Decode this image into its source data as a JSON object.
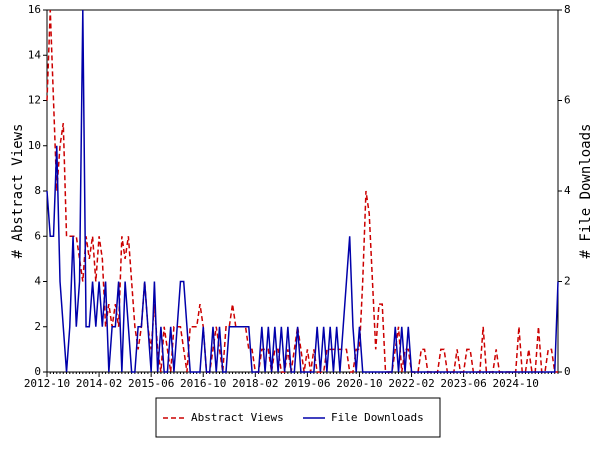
{
  "chart_data": {
    "type": "line",
    "y_label": "# Abstract Views",
    "y2_label": "# File Downloads",
    "categories": [
      "2012-10",
      null,
      null,
      null,
      null,
      null,
      null,
      null,
      null,
      null,
      null,
      null,
      null,
      null,
      null,
      null,
      "2014-02",
      null,
      null,
      null,
      null,
      null,
      null,
      null,
      null,
      null,
      null,
      null,
      null,
      null,
      null,
      null,
      "2015-06",
      null,
      null,
      null,
      null,
      null,
      null,
      null,
      null,
      null,
      null,
      null,
      null,
      null,
      null,
      null,
      "2016-10",
      null,
      null,
      null,
      null,
      null,
      null,
      null,
      null,
      null,
      null,
      null,
      null,
      null,
      null,
      null,
      "2018-02",
      null,
      null,
      null,
      null,
      null,
      null,
      null,
      null,
      null,
      null,
      null,
      null,
      null,
      null,
      null,
      "2019-06",
      null,
      null,
      null,
      null,
      null,
      null,
      null,
      null,
      null,
      null,
      null,
      null,
      null,
      null,
      null,
      "2020-10",
      null,
      null,
      null,
      null,
      null,
      null,
      null,
      null,
      null,
      null,
      null,
      null,
      null,
      null,
      null,
      "2022-02",
      null,
      null,
      null,
      null,
      null,
      null,
      null,
      null,
      null,
      null,
      null,
      null,
      null,
      null,
      null,
      "2023-06",
      null,
      null,
      null,
      null,
      null,
      null,
      null,
      null,
      null,
      null,
      null,
      null,
      null,
      null,
      null,
      "2024-10",
      null,
      null,
      null,
      null,
      null,
      null,
      null,
      null,
      null,
      null,
      null,
      null,
      null
    ],
    "series": [
      {
        "name": "Abstract Views",
        "color": "#cc0000",
        "dash": true,
        "values": [
          12,
          16,
          12,
          8,
          10,
          11,
          6,
          6,
          6,
          6,
          5,
          4,
          6,
          5,
          6,
          4,
          6,
          5,
          2,
          3,
          2,
          3,
          2,
          6,
          5,
          6,
          4,
          2,
          1,
          2,
          4,
          2,
          1,
          3,
          1,
          0,
          2,
          1,
          0,
          2,
          2,
          2,
          1,
          0,
          2,
          2,
          2,
          3,
          2,
          0,
          0,
          1,
          2,
          1,
          0,
          2,
          2,
          3,
          2,
          2,
          2,
          2,
          1,
          1,
          0,
          0,
          1,
          1,
          1,
          0,
          1,
          1,
          0,
          0,
          1,
          0,
          1,
          2,
          1,
          0,
          1,
          0,
          1,
          0,
          0,
          0,
          1,
          1,
          1,
          1,
          1,
          1,
          1,
          0,
          0,
          1,
          1,
          4,
          8,
          7,
          4,
          1,
          3,
          3,
          0,
          0,
          0,
          1,
          2,
          0,
          1,
          1,
          0,
          0,
          0,
          1,
          1,
          0,
          0,
          0,
          0,
          1,
          1,
          0,
          0,
          0,
          1,
          0,
          0,
          1,
          1,
          0,
          0,
          0,
          2,
          0,
          0,
          0,
          1,
          0,
          0,
          0,
          0,
          0,
          0,
          2,
          0,
          0,
          1,
          0,
          0,
          2,
          0,
          0,
          1,
          1,
          0,
          0
        ]
      },
      {
        "name": "File Downloads",
        "color": "#0000aa",
        "axis": "y2",
        "values": [
          4,
          3,
          3,
          5,
          2,
          1,
          0,
          1,
          3,
          1,
          2,
          8,
          1,
          1,
          2,
          1,
          2,
          1,
          2,
          0,
          1,
          1,
          2,
          0,
          2,
          1,
          0,
          0,
          1,
          1,
          2,
          1,
          0,
          2,
          0,
          1,
          0,
          0,
          1,
          0,
          1,
          2,
          2,
          1,
          0,
          0,
          0,
          0,
          1,
          0,
          0,
          1,
          0,
          1,
          0,
          0,
          1,
          1,
          1,
          1,
          1,
          1,
          1,
          0,
          0,
          0,
          1,
          0,
          1,
          0,
          1,
          0,
          1,
          0,
          1,
          0,
          0,
          1,
          0,
          0,
          0,
          0,
          0,
          1,
          0,
          1,
          0,
          1,
          0,
          1,
          0,
          1,
          2,
          3,
          1,
          0,
          1,
          0,
          0,
          0,
          0,
          0,
          0,
          0,
          0,
          0,
          0,
          1,
          0,
          1,
          0,
          1,
          0,
          0,
          0,
          0,
          0,
          0,
          0,
          0,
          0,
          0,
          0,
          0,
          0,
          0,
          0,
          0,
          0,
          0,
          0,
          0,
          0,
          0,
          0,
          0,
          0,
          0,
          0,
          0,
          0,
          0,
          0,
          0,
          0,
          0,
          0,
          0,
          0,
          0,
          0,
          0,
          0,
          0,
          0,
          0,
          0,
          2
        ]
      }
    ],
    "ylim": [
      0,
      16
    ],
    "yticks": [
      0,
      2,
      4,
      6,
      8,
      10,
      12,
      14,
      16
    ],
    "y2lim": [
      0,
      8
    ],
    "y2ticks": [
      0,
      2,
      4,
      6,
      8
    ],
    "legend": "bottom"
  }
}
